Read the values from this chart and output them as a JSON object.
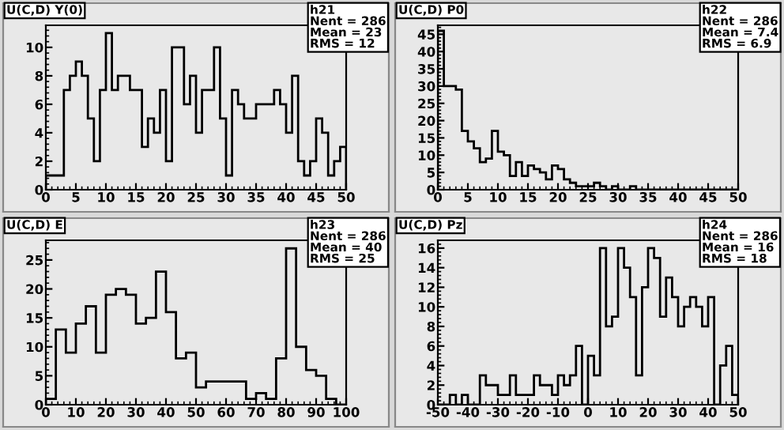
{
  "chart_data": [
    {
      "type": "histogram",
      "title": "U(C,D) Y(0)",
      "annotations": [
        "h21",
        "Nent = 286",
        "Mean = 23",
        "RMS = 12"
      ],
      "color": "#000000",
      "bins": [
        0,
        1,
        2,
        3,
        4,
        5,
        6,
        7,
        8,
        9,
        10,
        11,
        12,
        13,
        14,
        15,
        16,
        17,
        18,
        19,
        20,
        21,
        22,
        23,
        24,
        25,
        26,
        27,
        28,
        29,
        30,
        31,
        32,
        33,
        34,
        35,
        36,
        37,
        38,
        39,
        40,
        41,
        42,
        43,
        44,
        45,
        46,
        47,
        48,
        49,
        50
      ],
      "values": [
        1,
        1,
        1,
        7,
        8,
        9,
        8,
        5,
        2,
        7,
        11,
        7,
        8,
        8,
        7,
        7,
        3,
        5,
        4,
        7,
        2,
        10,
        10,
        6,
        8,
        4,
        7,
        7,
        10,
        5,
        1,
        7,
        6,
        5,
        5,
        6,
        6,
        6,
        7,
        6,
        4,
        8,
        2,
        1,
        2,
        5,
        4,
        1,
        2,
        3
      ],
      "xlim": [
        0,
        50
      ],
      "xticks": [
        0,
        5,
        10,
        15,
        20,
        25,
        30,
        35,
        40,
        45,
        50
      ],
      "ylim": [
        0,
        11.55
      ],
      "yticks": [
        0,
        2,
        4,
        6,
        8,
        10
      ],
      "grid": false,
      "legend": false
    },
    {
      "type": "histogram",
      "title": "U(C,D) P0",
      "annotations": [
        "h22",
        "Nent = 286",
        "Mean = 7.4",
        "RMS = 6.9"
      ],
      "color": "#000000",
      "bins": [
        0,
        1,
        2,
        3,
        4,
        5,
        6,
        7,
        8,
        9,
        10,
        11,
        12,
        13,
        14,
        15,
        16,
        17,
        18,
        19,
        20,
        21,
        22,
        23,
        24,
        25,
        26,
        27,
        28,
        29,
        30,
        31,
        32,
        33,
        34,
        35,
        36,
        37,
        38,
        39,
        40,
        41,
        42,
        43,
        44,
        45,
        46,
        47,
        48,
        49,
        50
      ],
      "values": [
        46,
        30,
        30,
        29,
        17,
        14,
        12,
        8,
        9,
        17,
        11,
        10,
        4,
        8,
        4,
        7,
        6,
        5,
        3,
        7,
        6,
        3,
        2,
        1,
        1,
        1,
        2,
        1,
        0,
        1,
        0,
        0,
        1,
        0,
        0,
        0,
        0,
        0,
        0,
        0,
        0,
        0,
        0,
        0,
        0,
        0,
        0,
        0,
        0,
        0
      ],
      "xlim": [
        0,
        50
      ],
      "xticks": [
        0,
        5,
        10,
        15,
        20,
        25,
        30,
        35,
        40,
        45,
        50
      ],
      "ylim": [
        0,
        47.6
      ],
      "yticks": [
        0,
        5,
        10,
        15,
        20,
        25,
        30,
        35,
        40,
        45
      ],
      "grid": false,
      "legend": false
    },
    {
      "type": "histogram",
      "title": "U(C,D) E",
      "annotations": [
        "h23",
        "Nent = 286",
        "Mean = 40",
        "RMS = 25"
      ],
      "color": "#000000",
      "bins": [
        0,
        3.33,
        6.67,
        10,
        13.33,
        16.67,
        20,
        23.33,
        26.67,
        30,
        33.33,
        36.67,
        40,
        43.33,
        46.67,
        50,
        53.33,
        56.67,
        60,
        63.33,
        66.67,
        70,
        73.33,
        76.67,
        80,
        83.33,
        86.67,
        90,
        93.33,
        96.67,
        100
      ],
      "values": [
        1,
        13,
        9,
        14,
        17,
        9,
        19,
        20,
        19,
        14,
        15,
        23,
        16,
        8,
        9,
        3,
        4,
        4,
        4,
        4,
        1,
        2,
        1,
        8,
        27,
        10,
        6,
        5,
        1,
        0
      ],
      "xlim": [
        0,
        100
      ],
      "xticks": [
        0,
        10,
        20,
        30,
        40,
        50,
        60,
        70,
        80,
        90,
        100
      ],
      "ylim": [
        0,
        28.4
      ],
      "yticks": [
        0,
        5,
        10,
        15,
        20,
        25
      ],
      "grid": false,
      "legend": false
    },
    {
      "type": "histogram",
      "title": "U(C,D) Pz",
      "annotations": [
        "h24",
        "Nent = 286",
        "Mean = 16",
        "RMS = 18"
      ],
      "color": "#000000",
      "bins": [
        -50,
        -48,
        -46,
        -44,
        -42,
        -40,
        -38,
        -36,
        -34,
        -32,
        -30,
        -28,
        -26,
        -24,
        -22,
        -20,
        -18,
        -16,
        -14,
        -12,
        -10,
        -8,
        -6,
        -4,
        -2,
        0,
        2,
        4,
        6,
        8,
        10,
        12,
        14,
        16,
        18,
        20,
        22,
        24,
        26,
        28,
        30,
        32,
        34,
        36,
        38,
        40,
        42,
        44,
        46,
        48,
        50
      ],
      "values": [
        0,
        0,
        1,
        0,
        1,
        0,
        0,
        3,
        2,
        2,
        1,
        1,
        3,
        1,
        1,
        1,
        3,
        2,
        2,
        1,
        3,
        2,
        3,
        6,
        0,
        5,
        3,
        16,
        8,
        9,
        16,
        14,
        11,
        3,
        12,
        16,
        15,
        9,
        13,
        11,
        8,
        10,
        11,
        10,
        8,
        11,
        0,
        4,
        6,
        1
      ],
      "xlim": [
        -50,
        50
      ],
      "xticks": [
        -50,
        -40,
        -30,
        -20,
        -10,
        0,
        10,
        20,
        30,
        40,
        50
      ],
      "ylim": [
        0,
        16.8
      ],
      "yticks": [
        0,
        2,
        4,
        6,
        8,
        10,
        12,
        14,
        16
      ],
      "grid": false,
      "legend": false
    }
  ]
}
